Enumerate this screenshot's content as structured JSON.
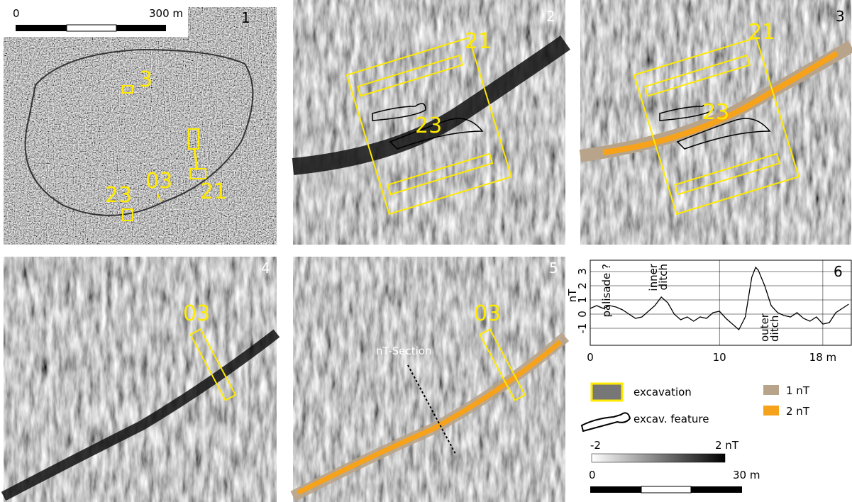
{
  "panels": [
    {
      "number": "1",
      "labels": [
        "0",
        "300 m",
        "3",
        "03",
        "21",
        "23"
      ]
    },
    {
      "number": "2",
      "labels": [
        "21",
        "23"
      ]
    },
    {
      "number": "3",
      "labels": [
        "21",
        "23"
      ]
    },
    {
      "number": "4",
      "labels": [
        "03"
      ]
    },
    {
      "number": "5",
      "labels": [
        "03",
        "nT-Section"
      ]
    },
    {
      "number": "6"
    }
  ],
  "chart_data": {
    "type": "line",
    "ylabel": "nT",
    "annotations": [
      [
        "palisade ?"
      ],
      [
        "inner",
        "ditch"
      ],
      [
        "outer",
        "ditch"
      ]
    ],
    "x": [
      0,
      0.5,
      1,
      1.5,
      2,
      2.5,
      3,
      3.5,
      4,
      4.5,
      5,
      5.5,
      6,
      6.5,
      7,
      7.5,
      8,
      8.5,
      9,
      9.5,
      10,
      10.5,
      11,
      11.5,
      12,
      12.5,
      12.8,
      13,
      13.5,
      14,
      14.5,
      15,
      15.5,
      16,
      16.5,
      17,
      17.5,
      18,
      18.5,
      19,
      19.5,
      20
    ],
    "values": [
      0.4,
      0.6,
      0.4,
      0.6,
      0.5,
      0.3,
      0,
      -0.3,
      -0.2,
      0.2,
      0.6,
      1.2,
      0.8,
      0,
      -0.4,
      -0.2,
      -0.5,
      -0.2,
      -0.3,
      0.1,
      0.2,
      -0.3,
      -0.7,
      -1.1,
      -0.2,
      2.6,
      3.3,
      3.1,
      2.0,
      0.6,
      0.1,
      -0.1,
      -0.2,
      0.1,
      -0.3,
      -0.5,
      -0.2,
      -0.7,
      -0.6,
      0.1,
      0.4,
      0.7
    ],
    "color": "#000000",
    "xlim": [
      0,
      20.2
    ],
    "ylim": [
      -2.2,
      3.8
    ],
    "xticks": [
      0,
      10,
      {
        "value": 18,
        "label": "18 m"
      }
    ],
    "yticks": [
      -1,
      0,
      1,
      2,
      3
    ],
    "grid": true
  },
  "legend": {
    "excavation": "excavation",
    "feature": "excav. feature",
    "one": "1 nT",
    "two": "2 nT",
    "colorbar_min": "-2",
    "colorbar_max": "2 nT",
    "scale_min": "0",
    "scale_max": "30 m"
  }
}
